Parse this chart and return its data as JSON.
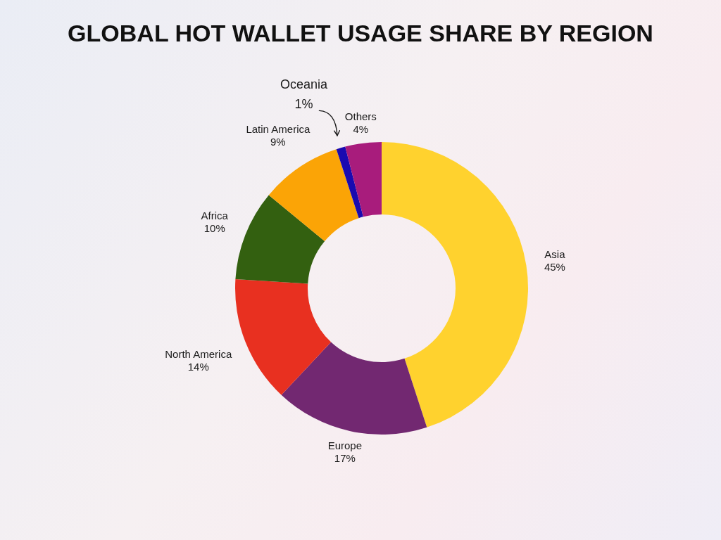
{
  "chart_data": {
    "type": "donut",
    "title": "GLOBAL HOT WALLET USAGE SHARE BY REGION",
    "categories": [
      "Asia",
      "Europe",
      "North America",
      "Africa",
      "Latin America",
      "Oceania",
      "Others"
    ],
    "values": [
      45,
      17,
      14,
      10,
      9,
      1,
      4
    ],
    "value_labels": [
      "45%",
      "17%",
      "14%",
      "10%",
      "9%",
      "1%",
      "4%"
    ],
    "colors": [
      "#ffd22e",
      "#722871",
      "#e83020",
      "#336010",
      "#fba406",
      "#1a0ab0",
      "#a81c7c"
    ]
  }
}
